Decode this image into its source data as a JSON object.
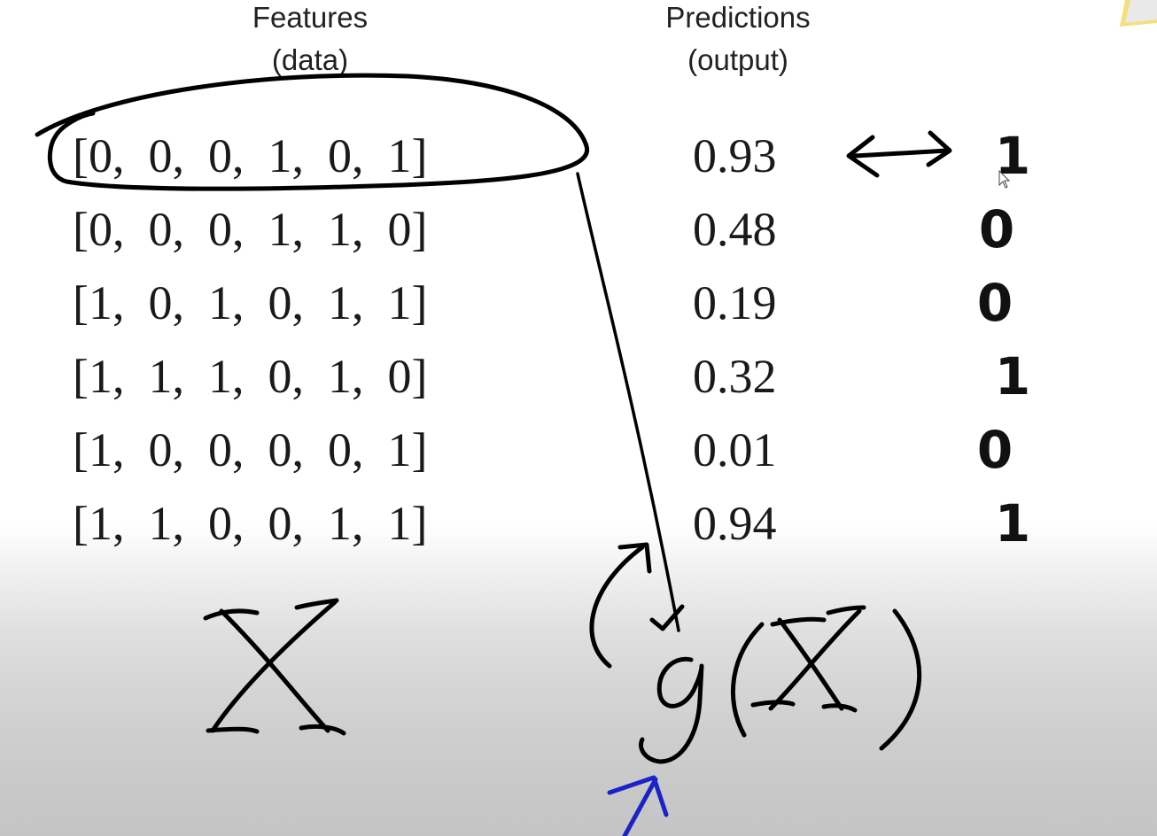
{
  "headers": {
    "features_line1": "Features",
    "features_line2": "(data)",
    "predictions_line1": "Predictions",
    "predictions_line2": "(output)"
  },
  "rows": [
    {
      "features": [
        0,
        0,
        0,
        1,
        0,
        1
      ],
      "prediction": "0.93",
      "label": "1"
    },
    {
      "features": [
        0,
        0,
        0,
        1,
        1,
        0
      ],
      "prediction": "0.48",
      "label": "0"
    },
    {
      "features": [
        1,
        0,
        1,
        0,
        1,
        1
      ],
      "prediction": "0.19",
      "label": "0"
    },
    {
      "features": [
        1,
        1,
        1,
        0,
        1,
        0
      ],
      "prediction": "0.32",
      "label": "1"
    },
    {
      "features": [
        1,
        0,
        0,
        0,
        0,
        1
      ],
      "prediction": "0.01",
      "label": "0"
    },
    {
      "features": [
        1,
        1,
        0,
        0,
        1,
        1
      ],
      "prediction": "0.94",
      "label": "1"
    }
  ],
  "handwriting": {
    "matrix_symbol": "X",
    "function_expression": "g(X)"
  },
  "colors": {
    "ink": "#000000",
    "blue_ink": "#1a22c8",
    "deco_yellow": "#f4e07a"
  },
  "icons": [
    "mouse-cursor-icon"
  ]
}
